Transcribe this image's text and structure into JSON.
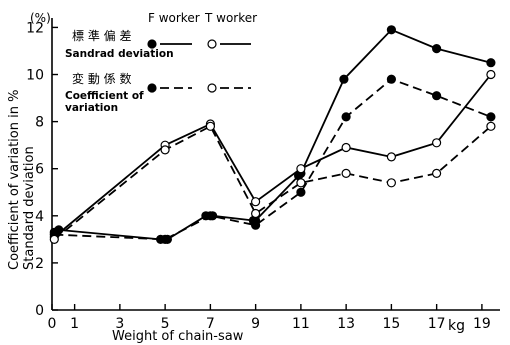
{
  "chart_data": {
    "type": "line",
    "ylabel_line1": "Coefficient of variation in %",
    "ylabel_line2": "Standard deviation",
    "y_unit": "(%)",
    "xlabel": "Weight  of  chain-saw",
    "x_unit": "kg",
    "xlim": [
      0,
      19.8
    ],
    "ylim": [
      0,
      12.4
    ],
    "x_ticks": [
      0,
      1,
      3,
      5,
      7,
      9,
      11,
      13,
      15,
      17,
      19
    ],
    "y_ticks": [
      0,
      2,
      4,
      6,
      8,
      10,
      12
    ],
    "legend": {
      "header_f": "F worker",
      "header_t": "T worker",
      "row1_jp": "標 準 偏 差",
      "row1_en": "Sandrad deviation",
      "row2_jp": "変 動 係 数",
      "row2_en_line1": "Coefficient of",
      "row2_en_line2": "variation"
    },
    "series": [
      {
        "worker": "F worker",
        "measure": "Sandrad deviation",
        "marker": "filled",
        "line": "solid",
        "x": [
          0.1,
          0.3,
          4.8,
          5.1,
          6.8,
          7.1,
          8.9,
          9.0,
          10.9,
          11.0,
          12.9,
          15.0,
          17.0,
          19.4
        ],
        "y": [
          3.3,
          3.4,
          3.0,
          3.0,
          4.0,
          4.0,
          3.8,
          3.8,
          5.7,
          5.8,
          9.8,
          11.9,
          11.1,
          10.5
        ]
      },
      {
        "worker": "T worker",
        "measure": "Sandrad deviation",
        "marker": "open",
        "line": "solid",
        "x": [
          0.1,
          5.0,
          7.0,
          9.0,
          11.0,
          13.0,
          15.0,
          17.0,
          19.4
        ],
        "y": [
          3.1,
          7.0,
          7.9,
          4.6,
          6.0,
          6.9,
          6.5,
          7.1,
          10.0
        ]
      },
      {
        "worker": "F worker",
        "measure": "Coefficient of variation",
        "marker": "filled",
        "line": "dashed",
        "x": [
          0.1,
          5.0,
          7.0,
          9.0,
          11.0,
          13.0,
          15.0,
          17.0,
          19.4
        ],
        "y": [
          3.2,
          3.0,
          4.0,
          3.6,
          5.0,
          8.2,
          9.8,
          9.1,
          8.2
        ]
      },
      {
        "worker": "T worker",
        "measure": "Coefficient of variation",
        "marker": "open",
        "line": "dashed",
        "x": [
          0.1,
          5.0,
          7.0,
          9.0,
          11.0,
          13.0,
          15.0,
          17.0,
          19.4
        ],
        "y": [
          3.0,
          6.8,
          7.8,
          4.1,
          5.4,
          5.8,
          5.4,
          5.8,
          7.8
        ]
      }
    ]
  }
}
